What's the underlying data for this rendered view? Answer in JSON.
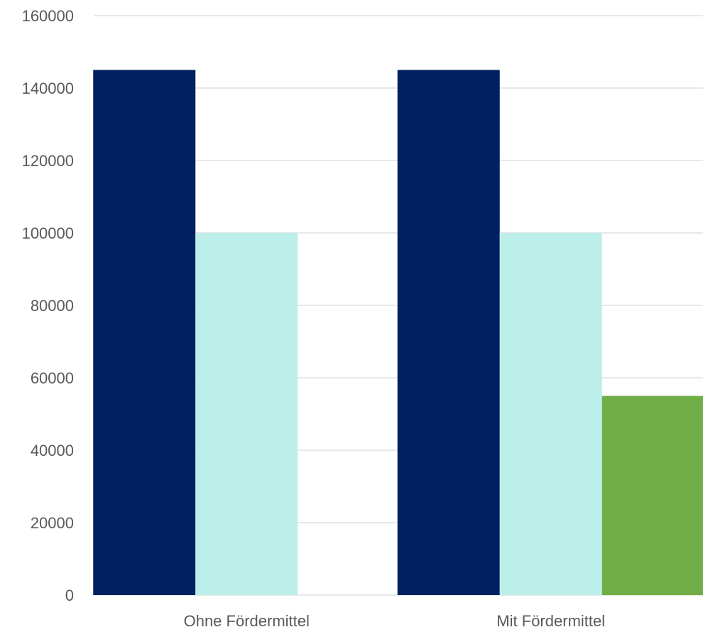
{
  "chart_data": {
    "type": "bar",
    "categories": [
      "Ohne Fördermittel",
      "Mit Fördermittel"
    ],
    "series": [
      {
        "values": [
          145000,
          145000
        ],
        "color": "#002060"
      },
      {
        "values": [
          100000,
          100000
        ],
        "color": "#BCEFEA"
      },
      {
        "values": [
          null,
          55000
        ],
        "color": "#70AD47"
      }
    ],
    "ylim": [
      0,
      160000
    ],
    "yticks": [
      0,
      20000,
      40000,
      60000,
      80000,
      100000,
      120000,
      140000,
      160000
    ],
    "ytick_labels": [
      "0",
      "20000",
      "40000",
      "60000",
      "80000",
      "100000",
      "120000",
      "140000",
      "160000"
    ],
    "grid": true,
    "grid_color": "#D9D9D9",
    "legend": "none"
  }
}
